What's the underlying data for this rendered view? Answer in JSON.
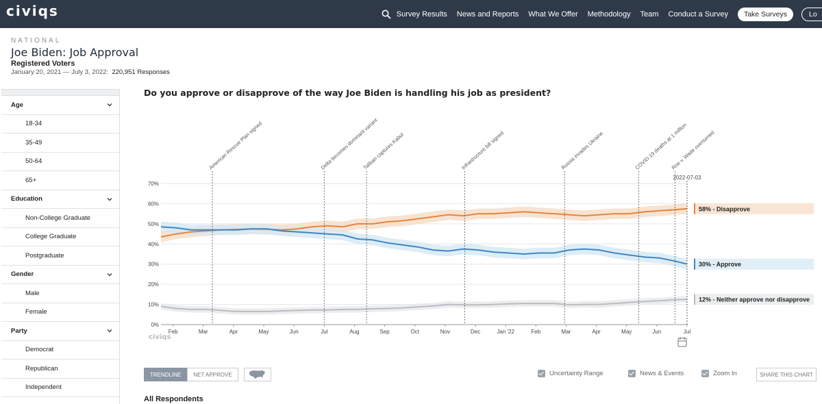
{
  "nav": {
    "logo": "civiqs",
    "links": [
      "Survey Results",
      "News and Reports",
      "What We Offer",
      "Methodology",
      "Team",
      "Conduct a Survey"
    ],
    "cta": "Take Surveys",
    "login": "Lo"
  },
  "header": {
    "scope": "NATIONAL",
    "title": "Joe Biden: Job Approval",
    "population": "Registered Voters",
    "date_range": "January 20, 2021 — July 3, 2022:",
    "responses": "220,951 Responses"
  },
  "sidebar": [
    {
      "group": "Age",
      "items": [
        "18-34",
        "35-49",
        "50-64",
        "65+"
      ]
    },
    {
      "group": "Education",
      "items": [
        "Non-College Graduate",
        "College Graduate",
        "Postgraduate"
      ]
    },
    {
      "group": "Gender",
      "items": [
        "Male",
        "Female"
      ]
    },
    {
      "group": "Party",
      "items": [
        "Democrat",
        "Republican",
        "Independent"
      ]
    }
  ],
  "question": "Do you approve or disapprove of the way Joe Biden is handling his job as president?",
  "chart_data": {
    "type": "line",
    "title": "Do you approve or disapprove of the way Joe Biden is handling his job as president?",
    "x_ticks": [
      "Feb",
      "Mar",
      "Apr",
      "May",
      "Jun",
      "Jul",
      "Aug",
      "Sep",
      "Oct",
      "Nov",
      "Dec",
      "Jan '22",
      "Feb",
      "Mar",
      "Apr",
      "May",
      "Jun",
      "Jul"
    ],
    "x_tick_month_index": [
      0.4,
      1.4,
      2.4,
      3.4,
      4.4,
      5.4,
      6.4,
      7.4,
      8.4,
      9.4,
      10.4,
      11.4,
      12.4,
      13.4,
      14.4,
      15.4,
      16.4,
      17.4
    ],
    "x_range": [
      "2021-01-20",
      "2022-07-03"
    ],
    "ylim": [
      0,
      70
    ],
    "y_ticks": [
      0,
      10,
      20,
      30,
      40,
      50,
      60,
      70
    ],
    "y_tick_labels": [
      "0%",
      "10%",
      "20%",
      "30%",
      "40%",
      "50%",
      "60%",
      "70%"
    ],
    "end_label": "2022-07-03",
    "watermark": "civiqs",
    "series": [
      {
        "name": "Disapprove",
        "color": "#e8843a",
        "band": "#f6dcc6",
        "end_label": "58% - Disapprove",
        "x": [
          0,
          0.5,
          1,
          1.5,
          2,
          2.5,
          3,
          3.5,
          4,
          4.5,
          5,
          5.5,
          6,
          6.5,
          7,
          7.5,
          8,
          8.5,
          9,
          9.5,
          10,
          10.5,
          11,
          11.5,
          12,
          12.5,
          13,
          13.5,
          14,
          14.5,
          15,
          15.5,
          16,
          16.5,
          17,
          17.4
        ],
        "values": [
          43.5,
          45,
          46,
          46.5,
          47,
          47.2,
          47.5,
          47.3,
          47,
          47.5,
          48.5,
          49,
          48.5,
          50,
          50,
          51,
          51.5,
          52.5,
          53.5,
          54.5,
          54,
          55,
          55,
          55.5,
          56,
          55.5,
          55,
          54.5,
          54,
          54.5,
          55,
          55,
          56,
          56.5,
          57,
          57.5
        ]
      },
      {
        "name": "Approve",
        "color": "#3f86c4",
        "band": "#d5e8f4",
        "end_label": "30% - Approve",
        "x": [
          0,
          0.5,
          1,
          1.5,
          2,
          2.5,
          3,
          3.5,
          4,
          4.5,
          5,
          5.5,
          6,
          6.5,
          7,
          7.5,
          8,
          8.5,
          9,
          9.5,
          10,
          10.5,
          11,
          11.5,
          12,
          12.5,
          13,
          13.5,
          14,
          14.5,
          15,
          15.5,
          16,
          16.5,
          17,
          17.4
        ],
        "values": [
          48.5,
          48,
          47,
          47,
          47,
          47,
          47.5,
          47.5,
          46.5,
          46,
          45.5,
          45,
          44.5,
          42.5,
          42,
          40.5,
          39.5,
          38.5,
          37,
          36.5,
          37.5,
          37,
          36,
          35.5,
          35,
          35.5,
          35.5,
          37,
          37.5,
          37,
          35.5,
          34.5,
          33.5,
          33,
          31.5,
          30
        ]
      },
      {
        "name": "Neither approve nor disapprove",
        "color": "#b9bcc0",
        "band": "#e7e8ea",
        "end_label": "12% - Neither approve nor disapprove",
        "x": [
          0,
          0.5,
          1,
          1.5,
          2,
          2.5,
          3,
          3.5,
          4,
          4.5,
          5,
          5.5,
          6,
          6.5,
          7,
          7.5,
          8,
          8.5,
          9,
          9.5,
          10,
          10.5,
          11,
          11.5,
          12,
          12.5,
          13,
          13.5,
          14,
          14.5,
          15,
          15.5,
          16,
          16.5,
          17,
          17.4
        ],
        "values": [
          9,
          8,
          7.5,
          7.5,
          7,
          6.5,
          6.5,
          6.5,
          6.8,
          7,
          7.2,
          7.2,
          7.5,
          7.5,
          7.8,
          8,
          8.3,
          8.8,
          9.2,
          10,
          9.8,
          9.8,
          10,
          10.3,
          10.5,
          10.5,
          10.5,
          9.8,
          10,
          10,
          10.5,
          11,
          11.5,
          11.8,
          12.3,
          12.5
        ]
      }
    ],
    "events": [
      {
        "label": "American Rescue Plan signed",
        "x": 1.7
      },
      {
        "label": "Delta becomes dominant variant",
        "x": 5.4
      },
      {
        "label": "Taliban captures Kabul",
        "x": 6.8
      },
      {
        "label": "Infrastructure bill signed",
        "x": 10.05
      },
      {
        "label": "Russia invades Ukraine",
        "x": 13.35
      },
      {
        "label": "COVID-19 deaths at 1 million",
        "x": 15.8
      },
      {
        "label": "Roe v. Wade overturned",
        "x": 17.0
      }
    ]
  },
  "controls": {
    "trendline": "TRENDLINE",
    "net_approve": "NET APPROVE",
    "uncertainty": "Uncertainty Range",
    "news": "News & Events",
    "zoom": "Zoom In",
    "share": "SHARE THIS CHART"
  },
  "section_title": "All Respondents"
}
